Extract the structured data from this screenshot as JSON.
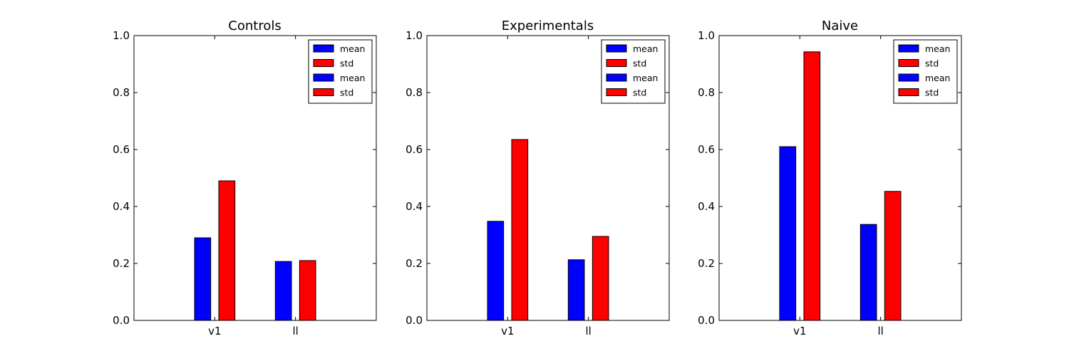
{
  "colors": {
    "mean": "#0000ff",
    "std": "#ff0000"
  },
  "chart_data": [
    {
      "type": "bar",
      "title": "Controls",
      "categories": [
        "v1",
        "ll"
      ],
      "series": [
        {
          "name": "mean",
          "values": [
            0.29,
            0.207
          ]
        },
        {
          "name": "std",
          "values": [
            0.49,
            0.21
          ]
        }
      ],
      "ylim": [
        0,
        1.0
      ],
      "yticks": [
        "0.0",
        "0.2",
        "0.4",
        "0.6",
        "0.8",
        "1.0"
      ],
      "grid": false,
      "legend": {
        "placement": "top-right",
        "entries": [
          "mean",
          "std",
          "mean",
          "std"
        ]
      }
    },
    {
      "type": "bar",
      "title": "Experimentals",
      "categories": [
        "v1",
        "ll"
      ],
      "series": [
        {
          "name": "mean",
          "values": [
            0.348,
            0.213
          ]
        },
        {
          "name": "std",
          "values": [
            0.635,
            0.295
          ]
        }
      ],
      "ylim": [
        0,
        1.0
      ],
      "yticks": [
        "0.0",
        "0.2",
        "0.4",
        "0.6",
        "0.8",
        "1.0"
      ],
      "grid": false,
      "legend": {
        "placement": "top-right",
        "entries": [
          "mean",
          "std",
          "mean",
          "std"
        ]
      }
    },
    {
      "type": "bar",
      "title": "Naive",
      "categories": [
        "v1",
        "ll"
      ],
      "series": [
        {
          "name": "mean",
          "values": [
            0.61,
            0.337
          ]
        },
        {
          "name": "std",
          "values": [
            0.943,
            0.453
          ]
        }
      ],
      "ylim": [
        0,
        1.0
      ],
      "yticks": [
        "0.0",
        "0.2",
        "0.4",
        "0.6",
        "0.8",
        "1.0"
      ],
      "grid": false,
      "legend": {
        "placement": "top-right",
        "entries": [
          "mean",
          "std",
          "mean",
          "std"
        ]
      }
    }
  ]
}
